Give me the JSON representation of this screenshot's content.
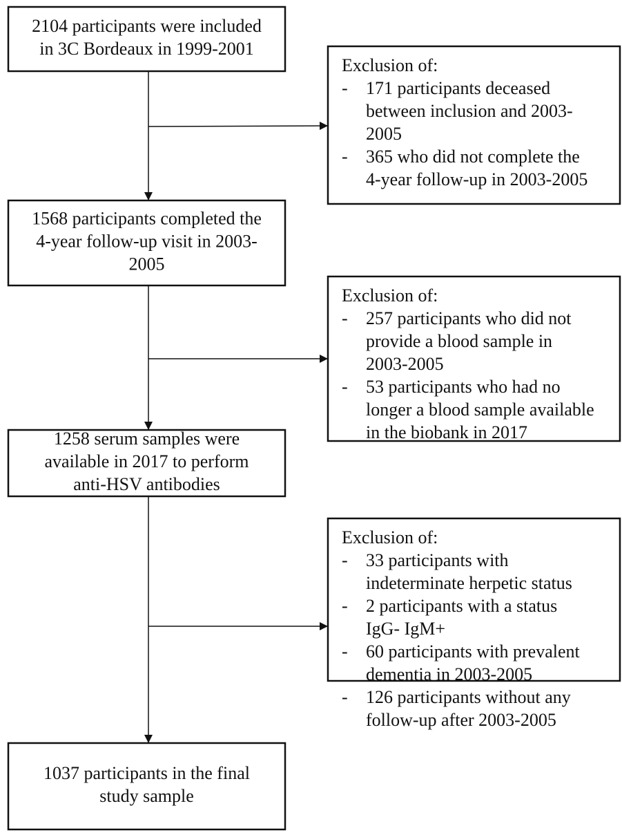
{
  "main_boxes": [
    {
      "lines": [
        "2104 participants were included",
        "in 3C Bordeaux in 1999-2001"
      ]
    },
    {
      "lines": [
        "1568 participants completed the",
        "4-year follow-up visit in 2003-",
        "2005"
      ]
    },
    {
      "lines": [
        "1258 serum samples were",
        "available in 2017 to perform",
        "anti-HSV antibodies"
      ]
    },
    {
      "lines": [
        "1037 participants in the final",
        "study sample"
      ]
    }
  ],
  "exclusion_boxes": [
    {
      "heading": "Exclusion of:",
      "items": [
        {
          "marker": "-",
          "lines": [
            "171 participants deceased",
            "between inclusion and 2003-",
            "2005"
          ]
        },
        {
          "marker": "-",
          "lines": [
            "365 who did not complete the",
            "4-year follow-up in 2003-2005"
          ]
        }
      ]
    },
    {
      "heading": "Exclusion of:",
      "items": [
        {
          "marker": "-",
          "lines": [
            "257 participants who did not",
            "provide a blood sample in",
            "2003-2005"
          ]
        },
        {
          "marker": "-",
          "lines": [
            "53 participants who had no",
            "longer a blood sample available",
            "in the biobank in 2017"
          ]
        }
      ]
    },
    {
      "heading": "Exclusion of:",
      "items": [
        {
          "marker": "-",
          "lines": [
            "33 participants with",
            "indeterminate herpetic status"
          ]
        },
        {
          "marker": "-",
          "lines": [
            "2 participants with a status",
            "IgG- IgM+"
          ]
        },
        {
          "marker": "-",
          "lines": [
            "60 participants with prevalent",
            "dementia in 2003-2005"
          ]
        },
        {
          "marker": "-",
          "lines": [
            "126 participants without any",
            "follow-up after 2003-2005"
          ]
        }
      ]
    }
  ]
}
